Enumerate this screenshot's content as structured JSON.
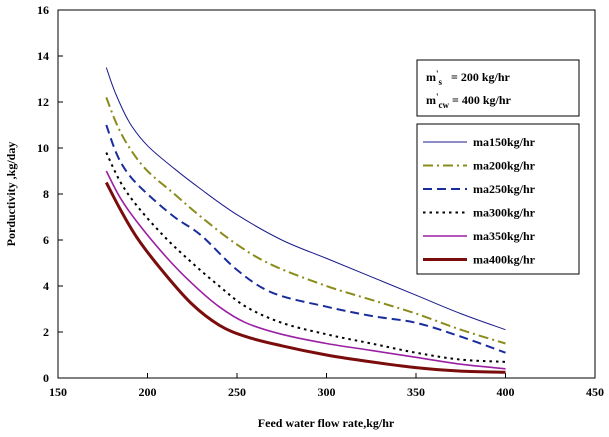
{
  "chart_data": {
    "type": "line",
    "xlabel": "Feed water flow rate,kg/hr",
    "ylabel": "Porductivity ,kg/day",
    "xlim": [
      150,
      450
    ],
    "ylim": [
      0,
      16
    ],
    "xticks": [
      "150",
      "200",
      "250",
      "300",
      "350",
      "400",
      "450"
    ],
    "yticks": [
      "0",
      "2",
      "4",
      "6",
      "8",
      "10",
      "12",
      "14",
      "16"
    ],
    "grid": false,
    "legend_position": "right",
    "annotation": {
      "line1": {
        "prefix": "m",
        "sup": "'",
        "sub": "s",
        "value": "= 200 kg/hr"
      },
      "line2": {
        "prefix": "m",
        "sup": "'",
        "sub": "cw",
        "value": "= 400 kg/hr"
      }
    },
    "series": [
      {
        "name": "ma150kg/hr",
        "color": "#1a1a8c",
        "dash": "solid",
        "points": [
          [
            177,
            13.5
          ],
          [
            182,
            12.4
          ],
          [
            190,
            11.1
          ],
          [
            200,
            10.1
          ],
          [
            215,
            9.1
          ],
          [
            230,
            8.2
          ],
          [
            250,
            7.1
          ],
          [
            275,
            6.0
          ],
          [
            300,
            5.2
          ],
          [
            325,
            4.4
          ],
          [
            350,
            3.6
          ],
          [
            375,
            2.8
          ],
          [
            400,
            2.1
          ]
        ]
      },
      {
        "name": "ma200kg/hr",
        "color": "#8b8b1c",
        "dash": "dashdot",
        "points": [
          [
            177,
            12.2
          ],
          [
            183,
            11.0
          ],
          [
            190,
            10.0
          ],
          [
            200,
            9.0
          ],
          [
            215,
            8.0
          ],
          [
            230,
            7.0
          ],
          [
            250,
            5.8
          ],
          [
            270,
            4.9
          ],
          [
            300,
            4.0
          ],
          [
            325,
            3.4
          ],
          [
            350,
            2.8
          ],
          [
            375,
            2.1
          ],
          [
            400,
            1.5
          ]
        ]
      },
      {
        "name": "ma250kg/hr",
        "color": "#1a2d9c",
        "dash": "dash",
        "points": [
          [
            177,
            11.0
          ],
          [
            183,
            9.7
          ],
          [
            190,
            8.8
          ],
          [
            200,
            8.0
          ],
          [
            215,
            7.0
          ],
          [
            230,
            6.2
          ],
          [
            250,
            4.7
          ],
          [
            270,
            3.7
          ],
          [
            300,
            3.1
          ],
          [
            325,
            2.7
          ],
          [
            350,
            2.4
          ],
          [
            375,
            1.8
          ],
          [
            400,
            1.1
          ]
        ]
      },
      {
        "name": "ma300kg/hr",
        "color": "#000000",
        "dash": "dot",
        "points": [
          [
            177,
            9.8
          ],
          [
            185,
            8.5
          ],
          [
            195,
            7.4
          ],
          [
            210,
            6.1
          ],
          [
            225,
            5.0
          ],
          [
            240,
            4.0
          ],
          [
            255,
            3.1
          ],
          [
            275,
            2.4
          ],
          [
            300,
            1.9
          ],
          [
            325,
            1.5
          ],
          [
            350,
            1.1
          ],
          [
            375,
            0.8
          ],
          [
            400,
            0.7
          ]
        ]
      },
      {
        "name": "ma350kg/hr",
        "color": "#9b1fa3",
        "dash": "solid",
        "points": [
          [
            177,
            9.0
          ],
          [
            185,
            7.8
          ],
          [
            195,
            6.7
          ],
          [
            210,
            5.3
          ],
          [
            225,
            4.1
          ],
          [
            240,
            3.1
          ],
          [
            255,
            2.4
          ],
          [
            275,
            1.9
          ],
          [
            300,
            1.5
          ],
          [
            325,
            1.2
          ],
          [
            350,
            0.9
          ],
          [
            375,
            0.6
          ],
          [
            400,
            0.4
          ]
        ]
      },
      {
        "name": "ma400kg/hr",
        "color": "#7a0c0c",
        "dash": "thick",
        "points": [
          [
            177,
            8.5
          ],
          [
            185,
            7.3
          ],
          [
            195,
            6.0
          ],
          [
            210,
            4.5
          ],
          [
            225,
            3.2
          ],
          [
            240,
            2.3
          ],
          [
            255,
            1.8
          ],
          [
            275,
            1.4
          ],
          [
            300,
            1.0
          ],
          [
            325,
            0.7
          ],
          [
            350,
            0.45
          ],
          [
            375,
            0.3
          ],
          [
            400,
            0.25
          ]
        ]
      }
    ]
  }
}
